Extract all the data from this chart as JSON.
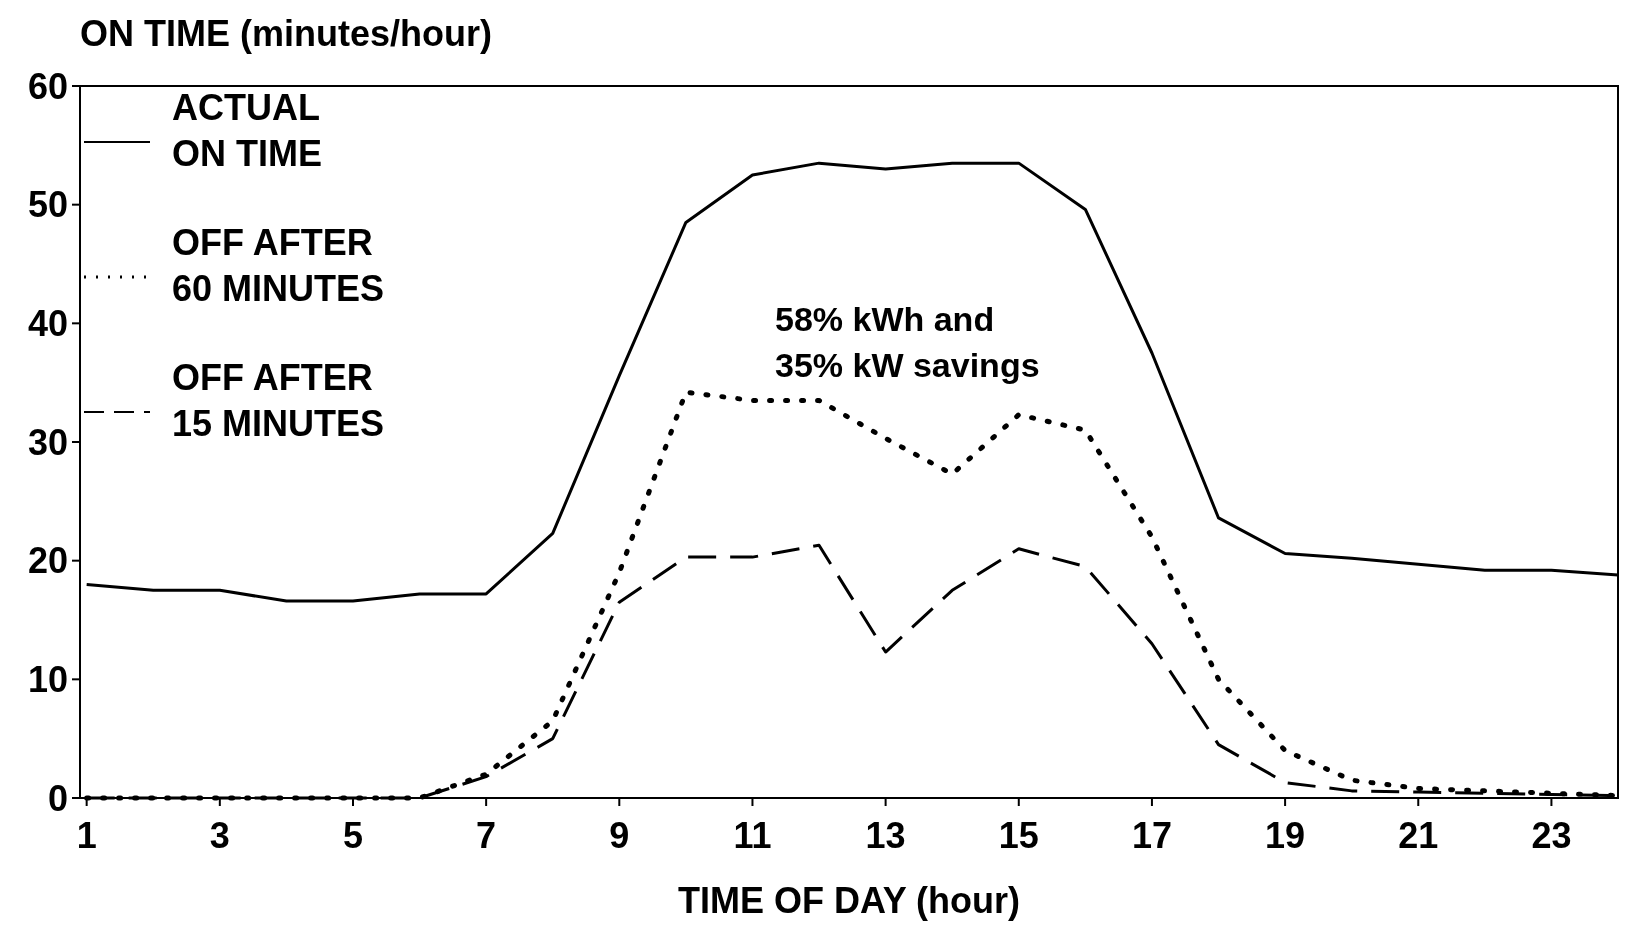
{
  "chart_data": {
    "type": "line",
    "title": "ON TIME (minutes/hour)",
    "xlabel": "TIME OF DAY (hour)",
    "x": [
      1,
      2,
      3,
      4,
      5,
      6,
      7,
      8,
      9,
      10,
      11,
      12,
      13,
      14,
      15,
      16,
      17,
      18,
      19,
      20,
      21,
      22,
      23,
      24
    ],
    "series": [
      {
        "name": "ACTUAL\nON TIME",
        "color": "#000000",
        "line_style": "solid",
        "values": [
          18,
          17.5,
          17.5,
          16.6,
          16.6,
          17.2,
          17.2,
          22.3,
          35.6,
          48.5,
          52.5,
          53.5,
          53,
          53.5,
          53.5,
          49.6,
          37.5,
          23.6,
          20.6,
          20.2,
          19.7,
          19.2,
          19.2,
          18.8
        ]
      },
      {
        "name": "OFF AFTER\n60 MINUTES",
        "color": "#000000",
        "line_style": "dotted",
        "values": [
          0,
          0,
          0,
          0,
          0,
          0,
          2,
          6.5,
          19,
          34.2,
          33.5,
          33.5,
          30.3,
          27.3,
          32.3,
          31,
          22,
          10,
          4,
          1.5,
          0.8,
          0.6,
          0.4,
          0.2
        ]
      },
      {
        "name": "OFF AFTER\n15 MINUTES",
        "color": "#000000",
        "line_style": "dashed",
        "values": [
          0,
          0,
          0,
          0,
          0,
          0,
          1.8,
          5,
          16.5,
          20.3,
          20.3,
          21.3,
          12.3,
          17.5,
          21,
          19.5,
          13,
          4.5,
          1.3,
          0.6,
          0.5,
          0.4,
          0.3,
          0.2
        ]
      }
    ],
    "annotations": [
      "58% kWh and\n35% kW savings"
    ],
    "xlim": [
      0.9,
      24
    ],
    "xticks": [
      1,
      3,
      5,
      7,
      9,
      11,
      13,
      15,
      17,
      19,
      21,
      23
    ],
    "ylim": [
      0,
      60
    ],
    "yticks": [
      0,
      10,
      20,
      30,
      40,
      50,
      60
    ],
    "legend": "top left",
    "grid": false
  }
}
